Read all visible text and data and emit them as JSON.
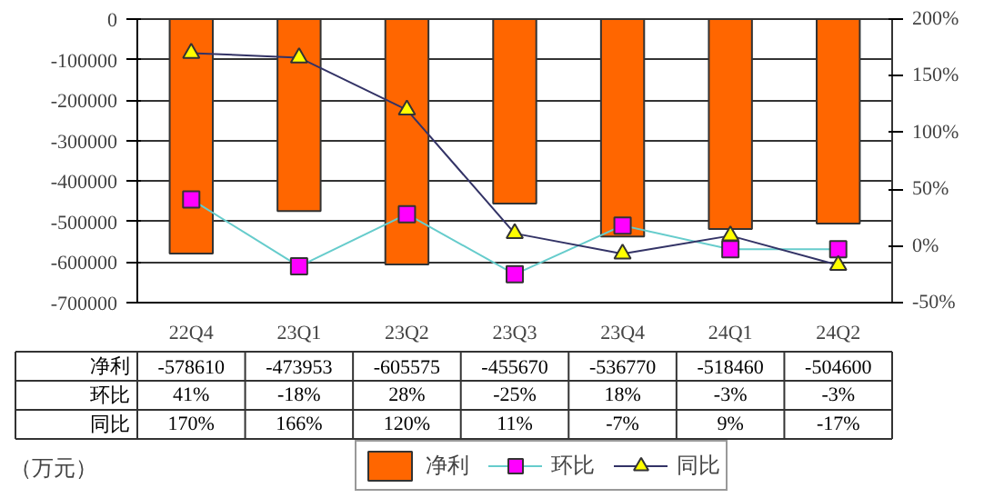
{
  "chart_data": {
    "type": "bar",
    "categories": [
      "22Q4",
      "23Q1",
      "23Q2",
      "23Q3",
      "23Q4",
      "24Q1",
      "24Q2"
    ],
    "series": [
      {
        "name": "净利",
        "color": "#ff6600",
        "values": [
          -578610,
          -473953,
          -605575,
          -455670,
          -536770,
          -518460,
          -504600
        ],
        "value_labels": [
          "-578610",
          "-473953",
          "-605575",
          "-455670",
          "-536770",
          "-518460",
          "-504600"
        ]
      },
      {
        "name": "环比",
        "type": "line",
        "axis": "y2",
        "marker": "square",
        "color": "#ff00ff",
        "values": [
          41,
          -18,
          28,
          -25,
          18,
          -3,
          -3
        ],
        "value_labels": [
          "41%",
          "-18%",
          "28%",
          "-25%",
          "18%",
          "-3%",
          "-3%"
        ]
      },
      {
        "name": "同比",
        "type": "line",
        "axis": "y2",
        "marker": "triangle",
        "color": "#ffff00",
        "values": [
          170,
          166,
          120,
          11,
          -7,
          9,
          -17
        ],
        "value_labels": [
          "170%",
          "166%",
          "120%",
          "11%",
          "-7%",
          "9%",
          "-17%"
        ]
      }
    ],
    "ylim": [
      -700000,
      0
    ],
    "yticks": [
      -700000,
      -600000,
      -500000,
      -400000,
      -300000,
      -200000,
      -100000,
      0
    ],
    "y2lim": [
      -50,
      200
    ],
    "y2ticks": [
      {
        "value": -50,
        "label": "-50%"
      },
      {
        "value": 0,
        "label": "0%"
      },
      {
        "value": 50,
        "label": "50%"
      },
      {
        "value": 100,
        "label": "100%"
      },
      {
        "value": 150,
        "label": "150%"
      },
      {
        "value": 200,
        "label": "200%"
      }
    ],
    "grid": "y",
    "legend": "bottom",
    "annotations": [
      "（万元）"
    ]
  }
}
